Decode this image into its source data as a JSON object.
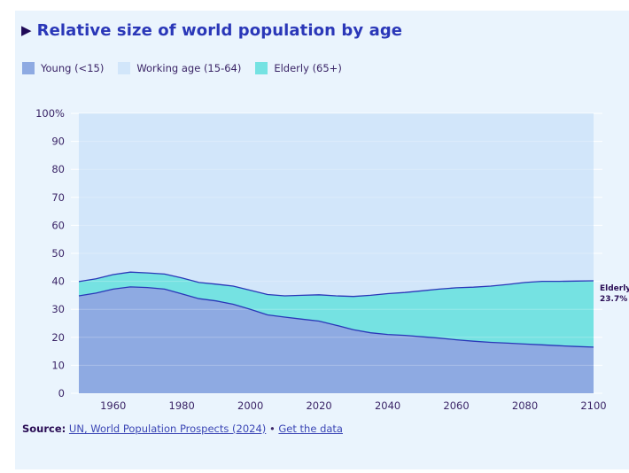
{
  "title": "Relative size of world population by age",
  "title_icon": "play-triangle-icon",
  "legend": [
    {
      "label": "Young (<15)",
      "color": "#8eaae2"
    },
    {
      "label": "Working age (15-64)",
      "color": "#d2e6fa"
    },
    {
      "label": "Elderly (65+)",
      "color": "#75e2e2"
    }
  ],
  "annotation": {
    "series": "Elderly",
    "value": "23.7%"
  },
  "source": {
    "prefix": "Source:",
    "link_text": "UN, World Population Prospects (2024)",
    "separator": "•",
    "data_link_text": "Get the data"
  },
  "colors": {
    "young": "#8eaae2",
    "working": "#d2e6fa",
    "elderly": "#75e2e2",
    "boundary_line": "#2a37b8",
    "text": "#3a2466",
    "title": "#2a37b8"
  },
  "chart_data": {
    "type": "area",
    "stacked": true,
    "title": "Relative size of world population by age",
    "xlabel": "",
    "ylabel": "",
    "xlim": [
      1950,
      2100
    ],
    "ylim": [
      0,
      100
    ],
    "x_ticks": [
      1960,
      1980,
      2000,
      2020,
      2040,
      2060,
      2080,
      2100
    ],
    "y_ticks": [
      0,
      10,
      20,
      30,
      40,
      50,
      60,
      70,
      80,
      90,
      100
    ],
    "y_tick_labels": [
      "0",
      "10",
      "20",
      "30",
      "40",
      "50",
      "60",
      "70",
      "80",
      "90",
      "100%"
    ],
    "grid": true,
    "legend_position": "top-left",
    "x": [
      1950,
      1955,
      1960,
      1965,
      1970,
      1975,
      1980,
      1985,
      1990,
      1995,
      2000,
      2005,
      2010,
      2015,
      2020,
      2025,
      2030,
      2035,
      2040,
      2045,
      2050,
      2055,
      2060,
      2065,
      2070,
      2075,
      2080,
      2085,
      2090,
      2095,
      2100
    ],
    "series": [
      {
        "name": "Young (<15)",
        "values": [
          34.8,
          35.8,
          37.2,
          38.0,
          37.8,
          37.2,
          35.5,
          33.8,
          33.0,
          31.8,
          30.0,
          28.0,
          27.2,
          26.5,
          25.8,
          24.3,
          22.7,
          21.6,
          21.0,
          20.7,
          20.2,
          19.7,
          19.1,
          18.6,
          18.2,
          17.9,
          17.6,
          17.3,
          17.0,
          16.7,
          16.5
        ]
      },
      {
        "name": "Elderly (65+)",
        "values": [
          5.1,
          5.1,
          5.2,
          5.3,
          5.2,
          5.4,
          5.7,
          5.8,
          6.0,
          6.5,
          6.8,
          7.3,
          7.6,
          8.5,
          9.4,
          10.5,
          11.9,
          13.4,
          14.6,
          15.3,
          16.4,
          17.5,
          18.6,
          19.3,
          20.1,
          21.0,
          22.0,
          22.7,
          23.0,
          23.4,
          23.7
        ]
      },
      {
        "name": "Working age (15-64)",
        "values": [
          60.1,
          59.1,
          57.6,
          56.7,
          57.0,
          57.4,
          58.8,
          60.4,
          61.0,
          61.7,
          63.2,
          64.7,
          65.2,
          65.0,
          64.8,
          65.2,
          65.4,
          65.0,
          64.4,
          64.0,
          63.4,
          62.8,
          62.3,
          62.1,
          61.7,
          61.1,
          60.4,
          60.0,
          60.0,
          59.9,
          59.8
        ]
      }
    ]
  }
}
